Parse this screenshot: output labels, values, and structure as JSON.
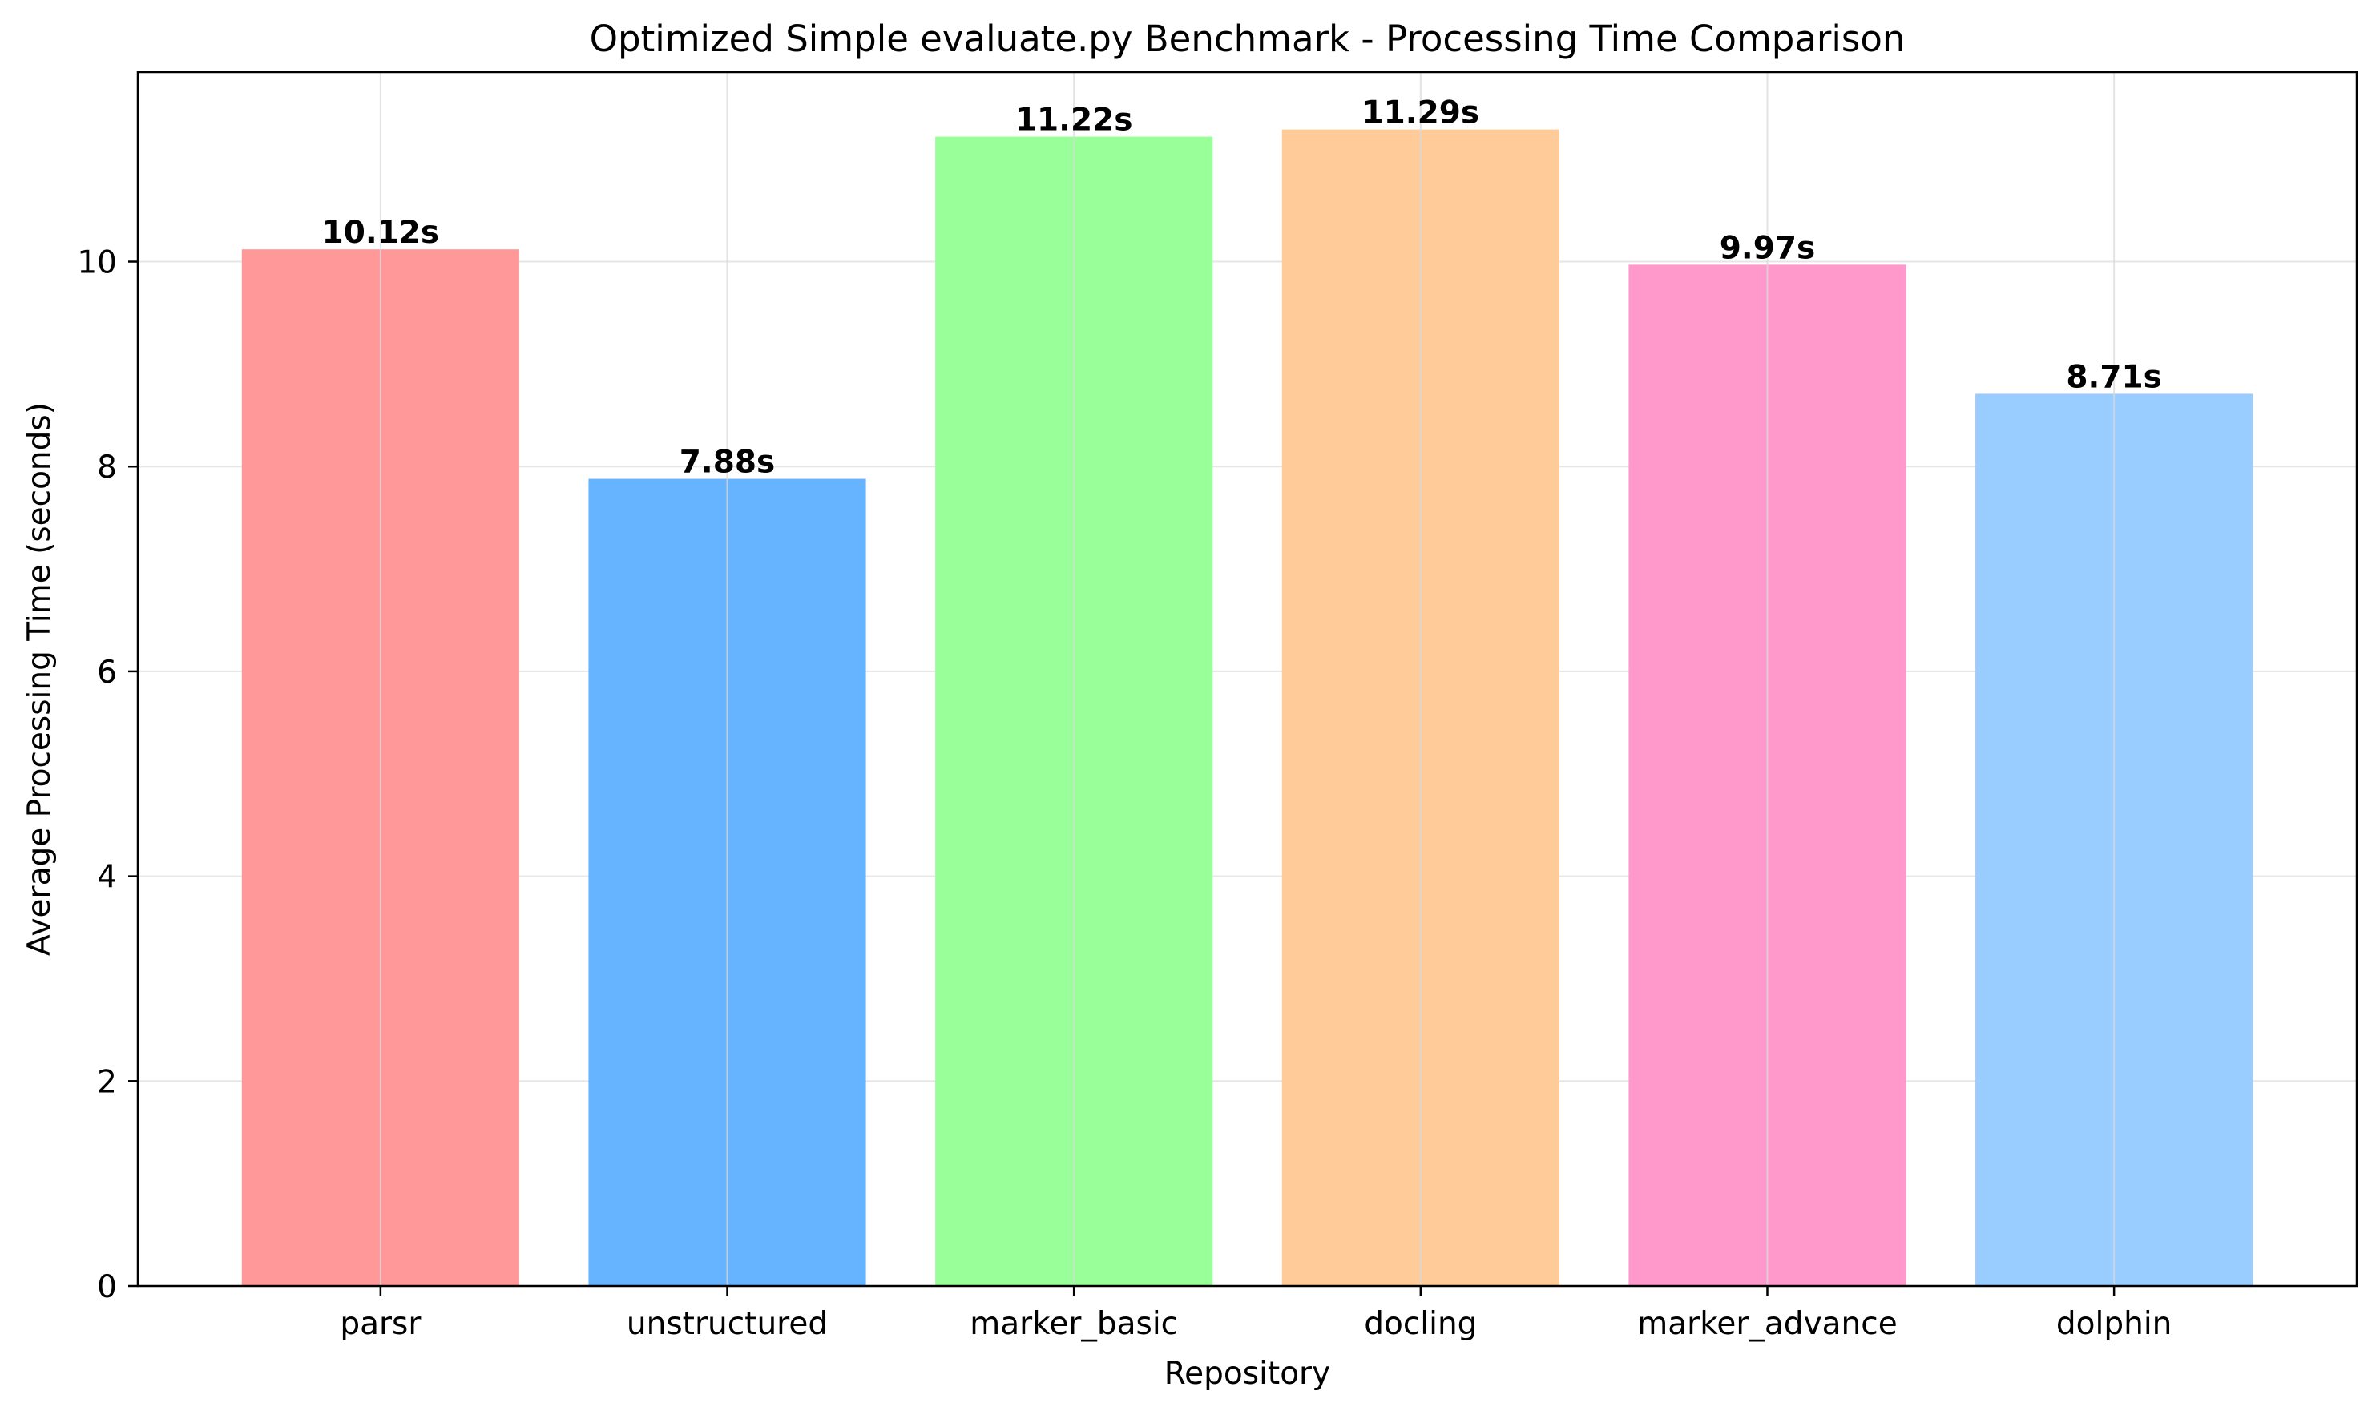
{
  "chart_data": {
    "type": "bar",
    "title": "Optimized Simple evaluate.py Benchmark - Processing Time Comparison",
    "xlabel": "Repository",
    "ylabel": "Average Processing Time (seconds)",
    "categories": [
      "parsr",
      "unstructured",
      "marker_basic",
      "docling",
      "marker_advance",
      "dolphin"
    ],
    "values": [
      10.12,
      7.88,
      11.22,
      11.29,
      9.97,
      8.71
    ],
    "value_labels": [
      "10.12s",
      "7.88s",
      "11.22s",
      "11.29s",
      "9.97s",
      "8.71s"
    ],
    "colors": [
      "#ff9999",
      "#66b3ff",
      "#99ff99",
      "#ffcc99",
      "#ff99cc",
      "#99ccff"
    ],
    "yticks": [
      0,
      2,
      4,
      6,
      8,
      10
    ],
    "ytick_labels": [
      "0",
      "2",
      "4",
      "6",
      "8",
      "10"
    ],
    "ylim": [
      0,
      11.85
    ],
    "grid": true,
    "grid_color": "#e6e6e6"
  }
}
